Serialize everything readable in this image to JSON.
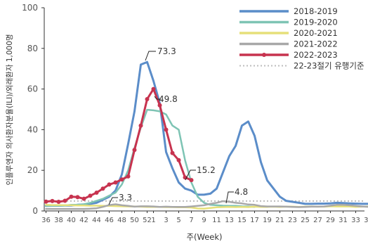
{
  "chart_data": {
    "type": "line",
    "title": "",
    "xlabel": "주(Week)",
    "ylabel": "인플루엔자 의사환자분율(ILI)/외래환자 1,000명",
    "ylim": [
      0,
      100
    ],
    "yticks": [
      0,
      20,
      40,
      60,
      80,
      100
    ],
    "x_categories": [
      "36",
      "37",
      "38",
      "39",
      "40",
      "41",
      "42",
      "43",
      "44",
      "45",
      "46",
      "47",
      "48",
      "49",
      "50",
      "51",
      "52",
      "1",
      "2",
      "3",
      "4",
      "5",
      "6",
      "7",
      "8",
      "9",
      "10",
      "11",
      "12",
      "13",
      "14",
      "15",
      "16",
      "17",
      "18",
      "19",
      "20",
      "21",
      "22",
      "23",
      "24",
      "25",
      "26",
      "27",
      "28",
      "29",
      "30",
      "31",
      "32",
      "33",
      "34",
      "35"
    ],
    "x_tick_labels": [
      "36",
      "38",
      "40",
      "42",
      "44",
      "46",
      "48",
      "50",
      "52",
      "1",
      "3",
      "5",
      "7",
      "9",
      "11",
      "13",
      "15",
      "17",
      "19",
      "21",
      "23",
      "25",
      "27",
      "29",
      "31",
      "33",
      "35"
    ],
    "grid": false,
    "legend_position": "top-right",
    "series": [
      {
        "name": "2018-2019",
        "color": "#5b8dc9",
        "width": 3,
        "values": [
          2.5,
          2.6,
          2.6,
          2.7,
          2.7,
          3.0,
          3.2,
          3.5,
          4.0,
          5.5,
          7.0,
          10.0,
          18.0,
          33.0,
          49.0,
          72.0,
          73.3,
          64.0,
          53.0,
          29.0,
          21.0,
          14.0,
          11.0,
          10.0,
          8.0,
          8.0,
          8.5,
          11.0,
          19.0,
          27.0,
          32.0,
          42.0,
          44.0,
          37.0,
          24.0,
          15.0,
          11.0,
          7.0,
          5.0,
          4.5,
          4.0,
          3.5,
          3.5,
          3.6,
          3.6,
          3.7,
          4.0,
          3.9,
          3.7,
          3.6,
          3.5,
          3.5
        ]
      },
      {
        "name": "2019-2020",
        "color": "#7ec4b4",
        "width": 2.5,
        "values": [
          2.5,
          2.6,
          2.6,
          2.7,
          3.0,
          3.0,
          3.3,
          4.0,
          5.0,
          6.0,
          7.5,
          9.0,
          13.0,
          20.0,
          31.0,
          41.0,
          49.8,
          49.5,
          49.0,
          47.5,
          42.0,
          40.0,
          25.0,
          14.0,
          7.0,
          4.0,
          3.0,
          2.8,
          2.6,
          2.5,
          2.5,
          2.3,
          2.2,
          2.0,
          null,
          null,
          null,
          null,
          null,
          null,
          null,
          null,
          null,
          null,
          null,
          null,
          null,
          null,
          null,
          null,
          null,
          null
        ]
      },
      {
        "name": "2020-2021",
        "color": "#e6e07a",
        "width": 2.5,
        "values": [
          3.0,
          2.9,
          2.9,
          2.8,
          2.8,
          2.7,
          2.7,
          2.6,
          2.6,
          2.5,
          2.5,
          2.4,
          2.3,
          2.2,
          2.2,
          2.1,
          2.0,
          2.0,
          2.0,
          1.9,
          1.9,
          1.8,
          1.8,
          1.7,
          1.2,
          1.1,
          1.5,
          1.8,
          1.9,
          2.0,
          1.9,
          2.0,
          1.9,
          2.1,
          2.0,
          2.0,
          2.1,
          2.0,
          2.1,
          2.1,
          2.0,
          2.1,
          2.2,
          2.1,
          2.1,
          2.3,
          2.2,
          2.2,
          2.2,
          2.0,
          2.1,
          2.2
        ]
      },
      {
        "name": "2021-2022",
        "color": "#a8a8a8",
        "width": 2.5,
        "values": [
          1.0,
          1.0,
          1.0,
          1.0,
          1.0,
          1.0,
          1.0,
          1.1,
          1.3,
          2.0,
          2.9,
          3.3,
          2.8,
          2.5,
          2.1,
          2.3,
          2.3,
          2.2,
          2.0,
          2.1,
          2.0,
          2.0,
          2.0,
          2.2,
          2.5,
          2.8,
          3.5,
          4.0,
          4.8,
          4.5,
          4.0,
          3.7,
          3.2,
          3.0,
          2.4,
          2.2,
          2.2,
          2.2,
          2.1,
          2.0,
          1.9,
          2.0,
          2.1,
          2.1,
          2.2,
          2.6,
          3.0,
          3.0,
          2.8,
          2.5,
          2.2,
          2.0
        ]
      },
      {
        "name": "2022-2023",
        "color": "#c7334f",
        "width": 3,
        "marker": true,
        "values": [
          4.6,
          4.9,
          4.5,
          5.0,
          7.0,
          6.8,
          6.0,
          7.5,
          9.0,
          11.0,
          13.0,
          14.0,
          15.5,
          17.0,
          30.0,
          42.0,
          55.0,
          60.0,
          52.0,
          40.0,
          28.5,
          25.0,
          16.5,
          15.2,
          null,
          null,
          null,
          null,
          null,
          null,
          null,
          null,
          null,
          null,
          null,
          null,
          null,
          null,
          null,
          null,
          null,
          null,
          null,
          null,
          null,
          null,
          null,
          null,
          null,
          null,
          null,
          null
        ]
      }
    ],
    "threshold": {
      "name": "22-23절기 유행기준",
      "value": 4.9,
      "color": "#bdbdbd"
    },
    "annotations": [
      {
        "text": "73.3",
        "x": "52",
        "y": 73.3
      },
      {
        "text": "49.8",
        "x": "52",
        "y": 49.8
      },
      {
        "text": "15.2",
        "x": "7",
        "y": 15.2,
        "color": "#e0121f"
      },
      {
        "text": "3.3",
        "x": "47",
        "y": 3.3
      },
      {
        "text": "4.8",
        "x": "12",
        "y": 4.8
      }
    ]
  }
}
